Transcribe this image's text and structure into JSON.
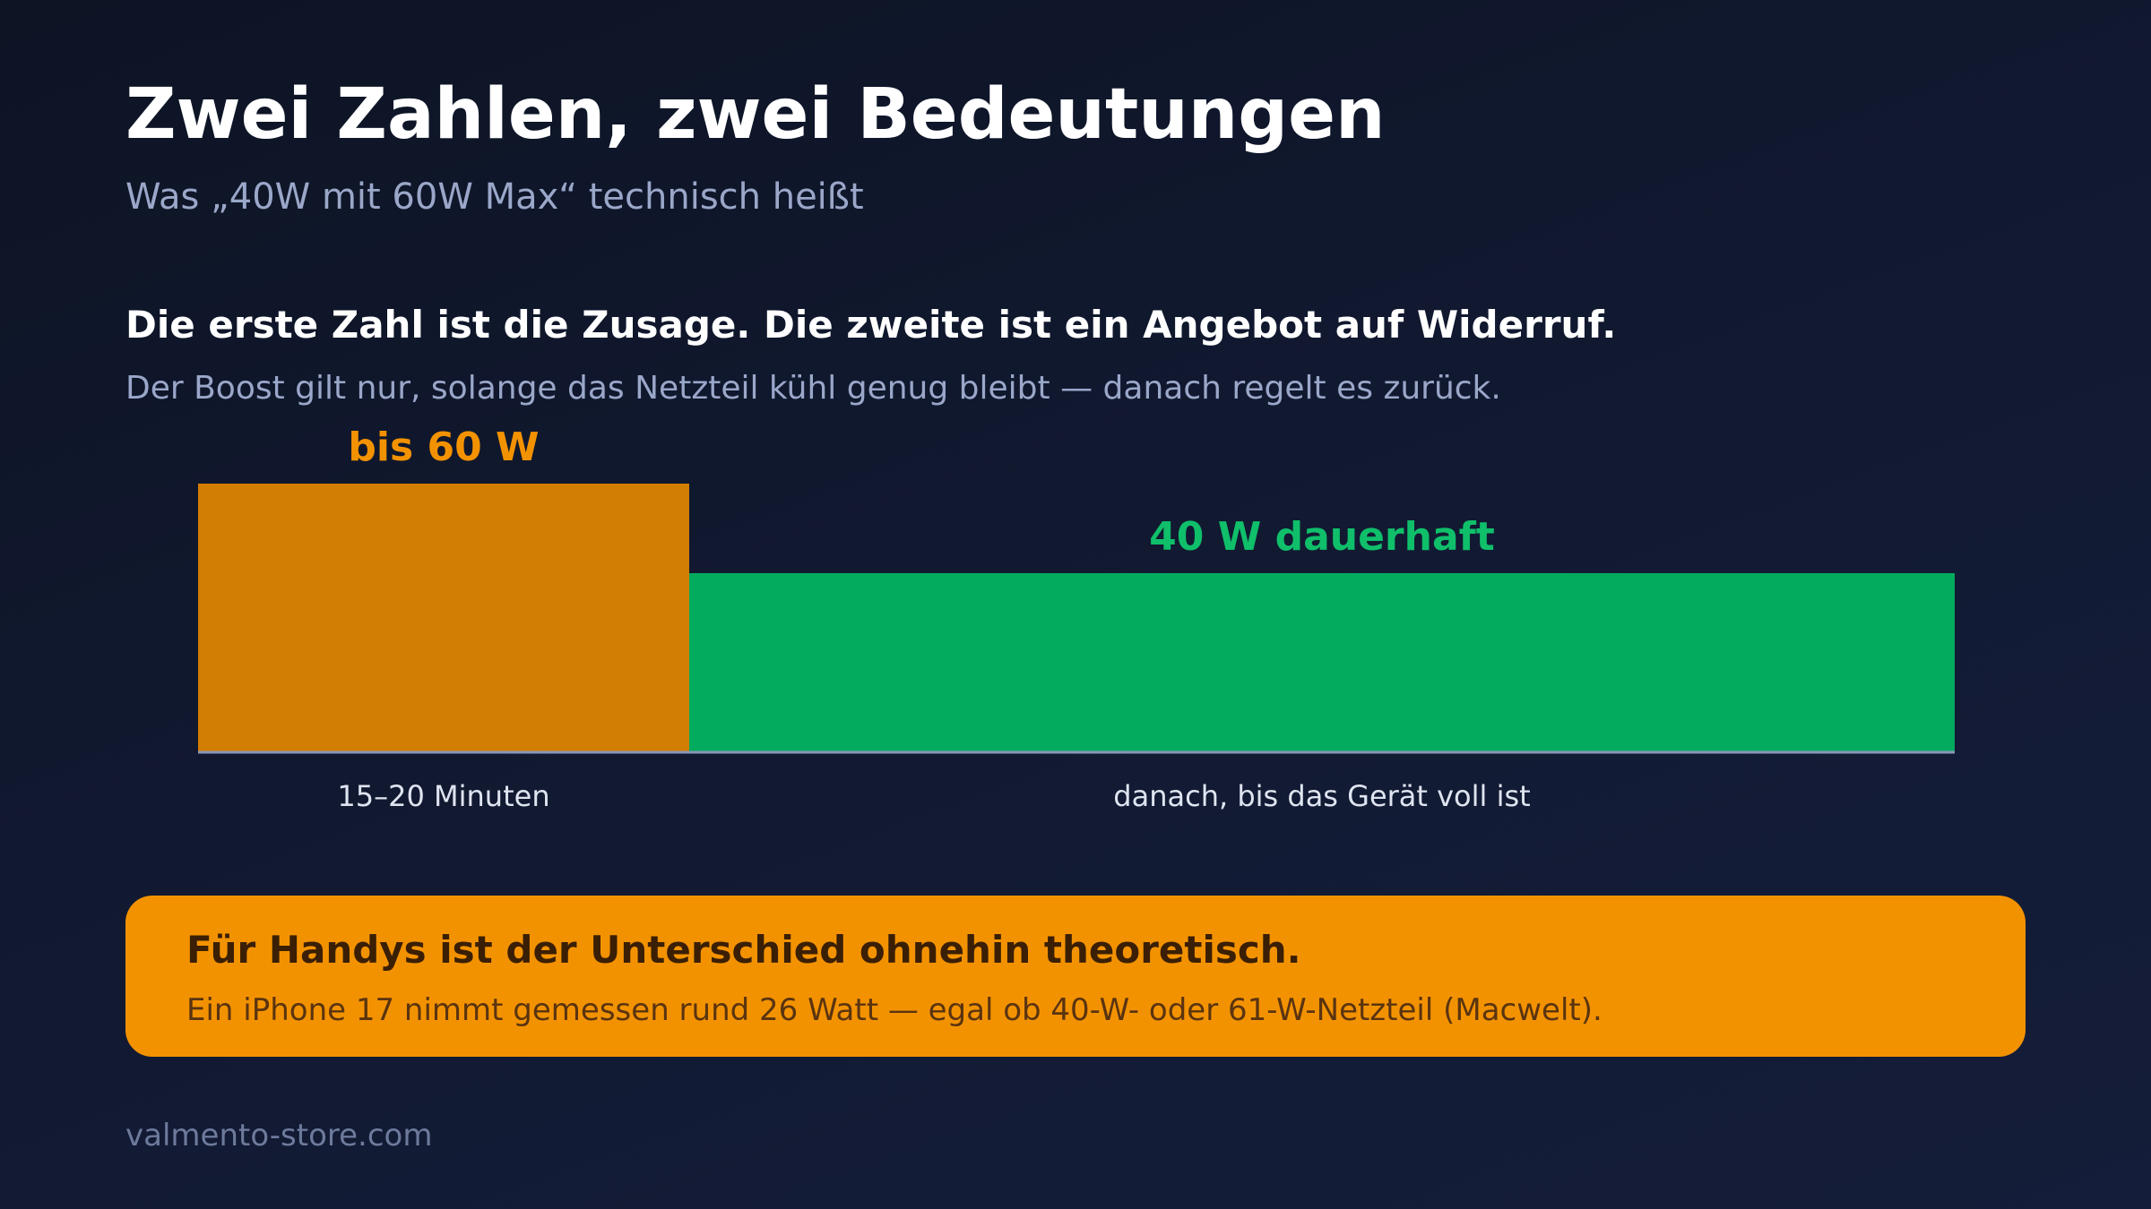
{
  "header": {
    "title": "Zwei Zahlen, zwei Bedeutungen",
    "subtitle": "Was „40W mit 60W Max“ technisch heißt"
  },
  "intro": {
    "headline": "Die erste Zahl ist die Zusage. Die zweite ist ein Angebot auf Widerruf.",
    "text": "Der Boost gilt nur, solange das Netzteil kühl genug bleibt — danach regelt es zurück."
  },
  "chart_data": {
    "type": "bar",
    "categories": [
      "15–20 Minuten",
      "danach, bis das Gerät voll ist"
    ],
    "values": [
      60,
      40
    ],
    "unit": "W",
    "data_labels": [
      "bis 60 W",
      "40 W dauerhaft"
    ],
    "ylim": [
      0,
      60
    ],
    "grid": false,
    "colors": [
      "#d27d03",
      "#03ab5f"
    ],
    "label_colors": [
      "#f39200",
      "#0fbf6a"
    ]
  },
  "callout": {
    "title": "Für Handys ist der Unterschied ohnehin theoretisch.",
    "text": "Ein iPhone 17 nimmt gemessen rund 26 Watt — egal ob 40-W- oder 61-W-Netzteil (Macwelt).",
    "background": "#f39200"
  },
  "footer": {
    "source": "valmento-store.com"
  }
}
